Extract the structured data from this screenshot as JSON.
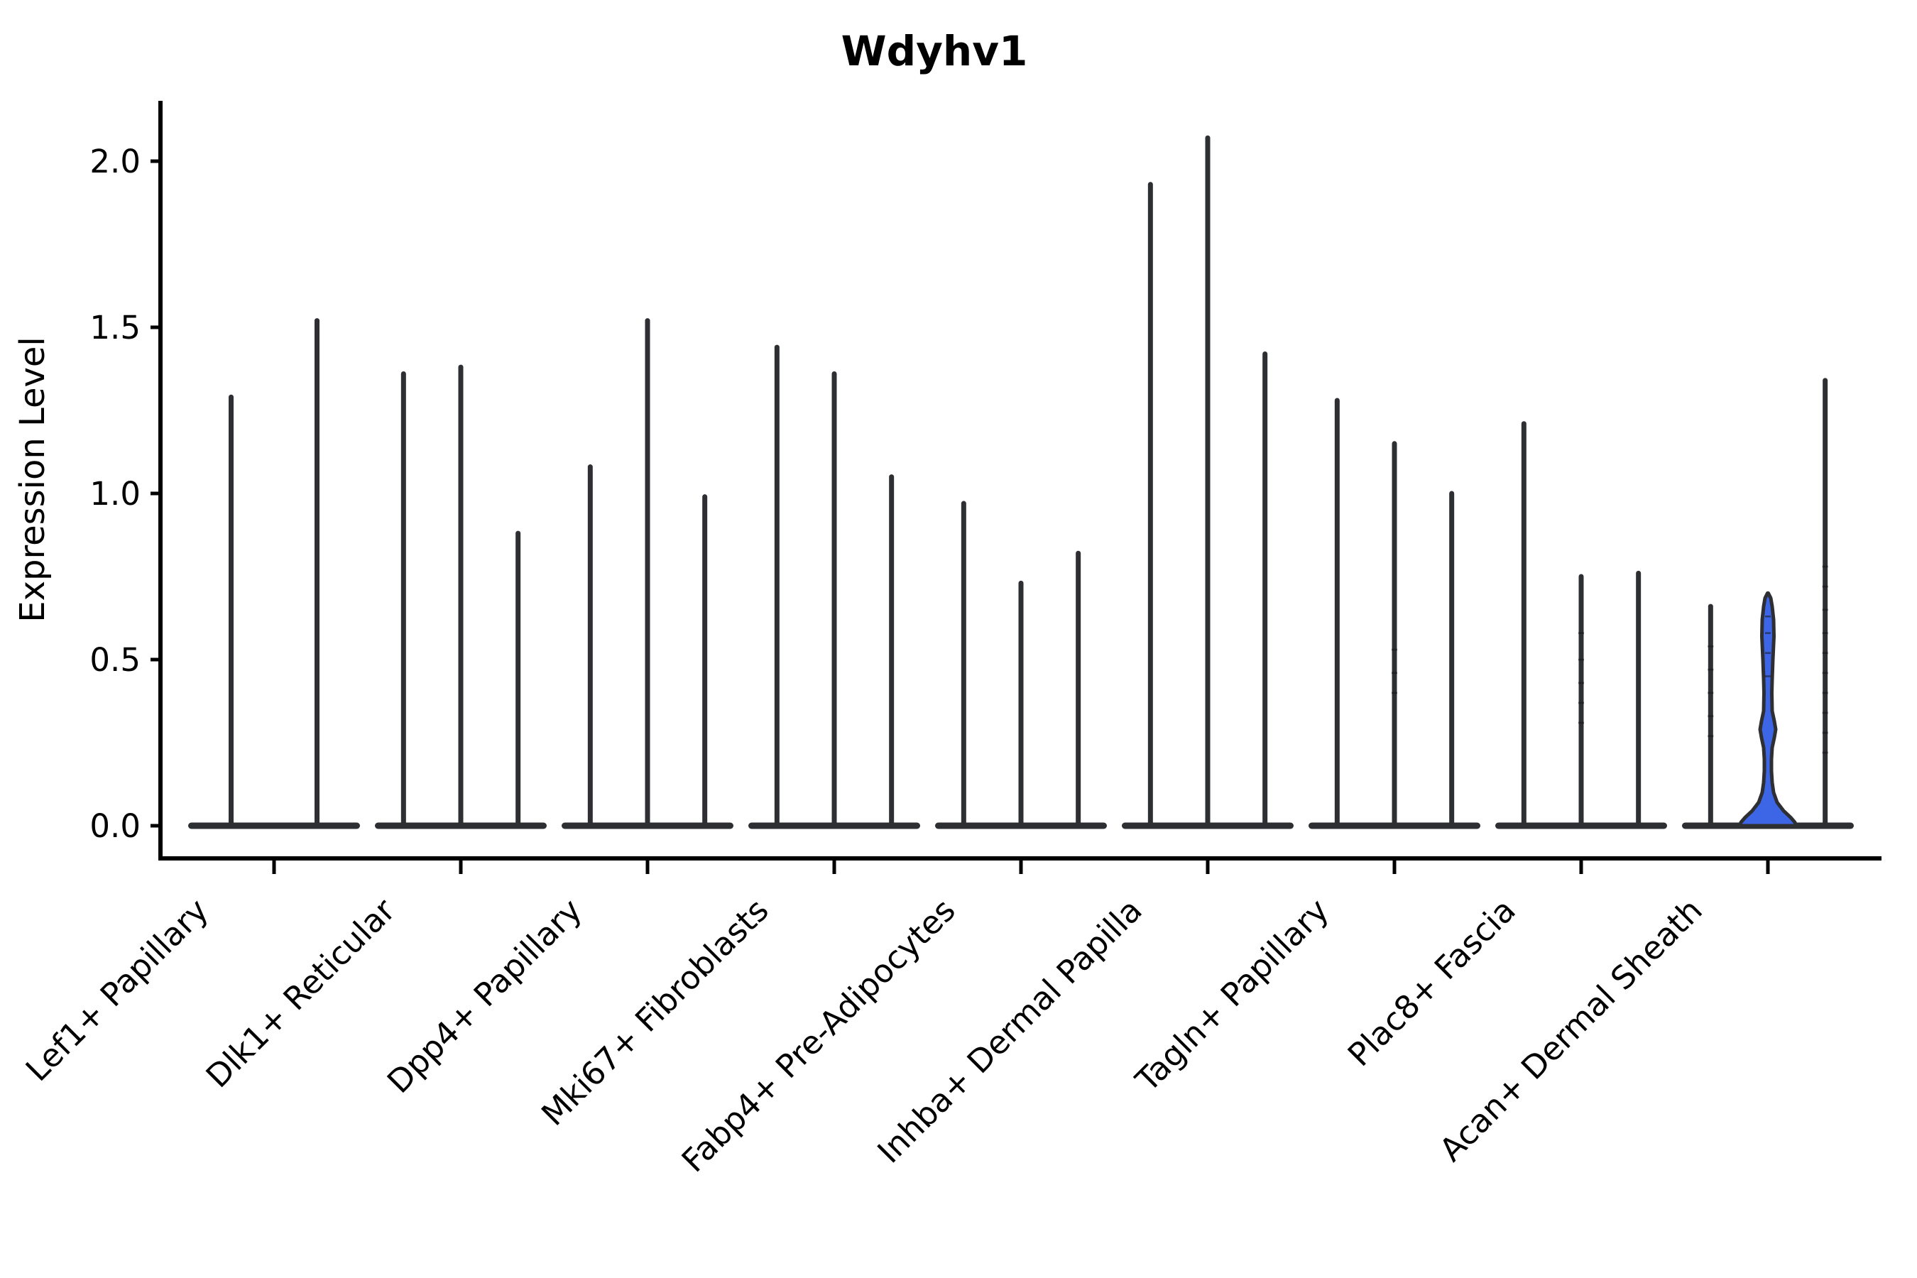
{
  "page": {
    "title": "Wdyhv1"
  },
  "chart_data": {
    "type": "violin",
    "title": "Wdyhv1",
    "xlabel": "",
    "ylabel": "Expression Level",
    "ylim": [
      -0.1,
      2.17
    ],
    "yticks": [
      0.0,
      0.5,
      1.0,
      1.5,
      2.0
    ],
    "ytick_labels": [
      "0.0",
      "0.5",
      "1.0",
      "1.5",
      "2.0"
    ],
    "grid": false,
    "legend": "none",
    "categories": [
      "Lef1+ Papillary",
      "Dlk1+ Reticular",
      "Dpp4+ Papillary",
      "Mki67+ Fibroblasts",
      "Fabp4+ Pre-Adipocytes",
      "Inhba+ Dermal Papilla",
      "Tagln+ Papillary",
      "Plac8+ Fascia",
      "Acan+ Dermal Sheath"
    ],
    "series": [
      {
        "category": "Lef1+ Papillary",
        "violin_maxima": [
          1.29,
          1.52
        ]
      },
      {
        "category": "Dlk1+ Reticular",
        "violin_maxima": [
          1.36,
          1.38,
          0.88
        ]
      },
      {
        "category": "Dpp4+ Papillary",
        "violin_maxima": [
          1.08,
          1.52,
          0.99
        ]
      },
      {
        "category": "Mki67+ Fibroblasts",
        "violin_maxima": [
          1.44,
          1.36,
          1.05
        ]
      },
      {
        "category": "Fabp4+ Pre-Adipocytes",
        "violin_maxima": [
          0.97,
          0.73,
          0.82
        ]
      },
      {
        "category": "Inhba+ Dermal Papilla",
        "violin_maxima": [
          1.93,
          2.07,
          1.42
        ]
      },
      {
        "category": "Tagln+ Papillary",
        "violin_maxima": [
          1.28,
          1.15,
          1.0
        ]
      },
      {
        "category": "Plac8+ Fascia",
        "violin_maxima": [
          1.21,
          0.75,
          0.76
        ]
      },
      {
        "category": "Acan+ Dermal Sheath",
        "violin_maxima": [
          0.66,
          0.7,
          1.34
        ]
      }
    ],
    "highlight": {
      "category": "Acan+ Dermal Sheath",
      "category_index": 8,
      "violin_index": 1,
      "max": 0.7,
      "bulge_center": 0.29,
      "fill": "#3D66E6",
      "profile": [
        [
          0.0,
          40.0
        ],
        [
          0.01,
          38.0
        ],
        [
          0.025,
          32.0
        ],
        [
          0.045,
          22.0
        ],
        [
          0.07,
          13.0
        ],
        [
          0.1,
          8.0
        ],
        [
          0.13,
          6.0
        ],
        [
          0.165,
          5.0
        ],
        [
          0.2,
          5.0
        ],
        [
          0.235,
          6.0
        ],
        [
          0.265,
          9.0
        ],
        [
          0.29,
          11.0
        ],
        [
          0.315,
          9.0
        ],
        [
          0.345,
          6.0
        ],
        [
          0.4,
          5.5
        ],
        [
          0.44,
          6.0
        ],
        [
          0.5,
          7.0
        ],
        [
          0.57,
          8.5
        ],
        [
          0.62,
          8.0
        ],
        [
          0.66,
          6.0
        ],
        [
          0.685,
          4.0
        ],
        [
          0.7,
          0.5
        ]
      ]
    },
    "point_dashes": [
      {
        "category_index": 6,
        "violin_index": 1,
        "values": [
          0.4,
          0.46,
          0.53
        ]
      },
      {
        "category_index": 7,
        "violin_index": 1,
        "values": [
          0.31,
          0.37,
          0.43,
          0.5,
          0.58
        ]
      },
      {
        "category_index": 8,
        "violin_index": 0,
        "values": [
          0.27,
          0.33,
          0.4,
          0.47,
          0.54
        ]
      },
      {
        "category_index": 8,
        "violin_index": 1,
        "values": [
          0.45,
          0.52,
          0.58,
          0.63
        ]
      },
      {
        "category_index": 8,
        "violin_index": 2,
        "values": [
          0.22,
          0.28,
          0.34,
          0.4,
          0.46,
          0.52,
          0.58,
          0.65,
          0.72,
          0.78
        ]
      }
    ],
    "colors": {
      "background": "#ffffff",
      "axis": "#000000",
      "violin_edge": "#2e2f33",
      "highlight_fill": "#3D66E6",
      "text": "#000000",
      "point_dash": "#15161a"
    }
  }
}
